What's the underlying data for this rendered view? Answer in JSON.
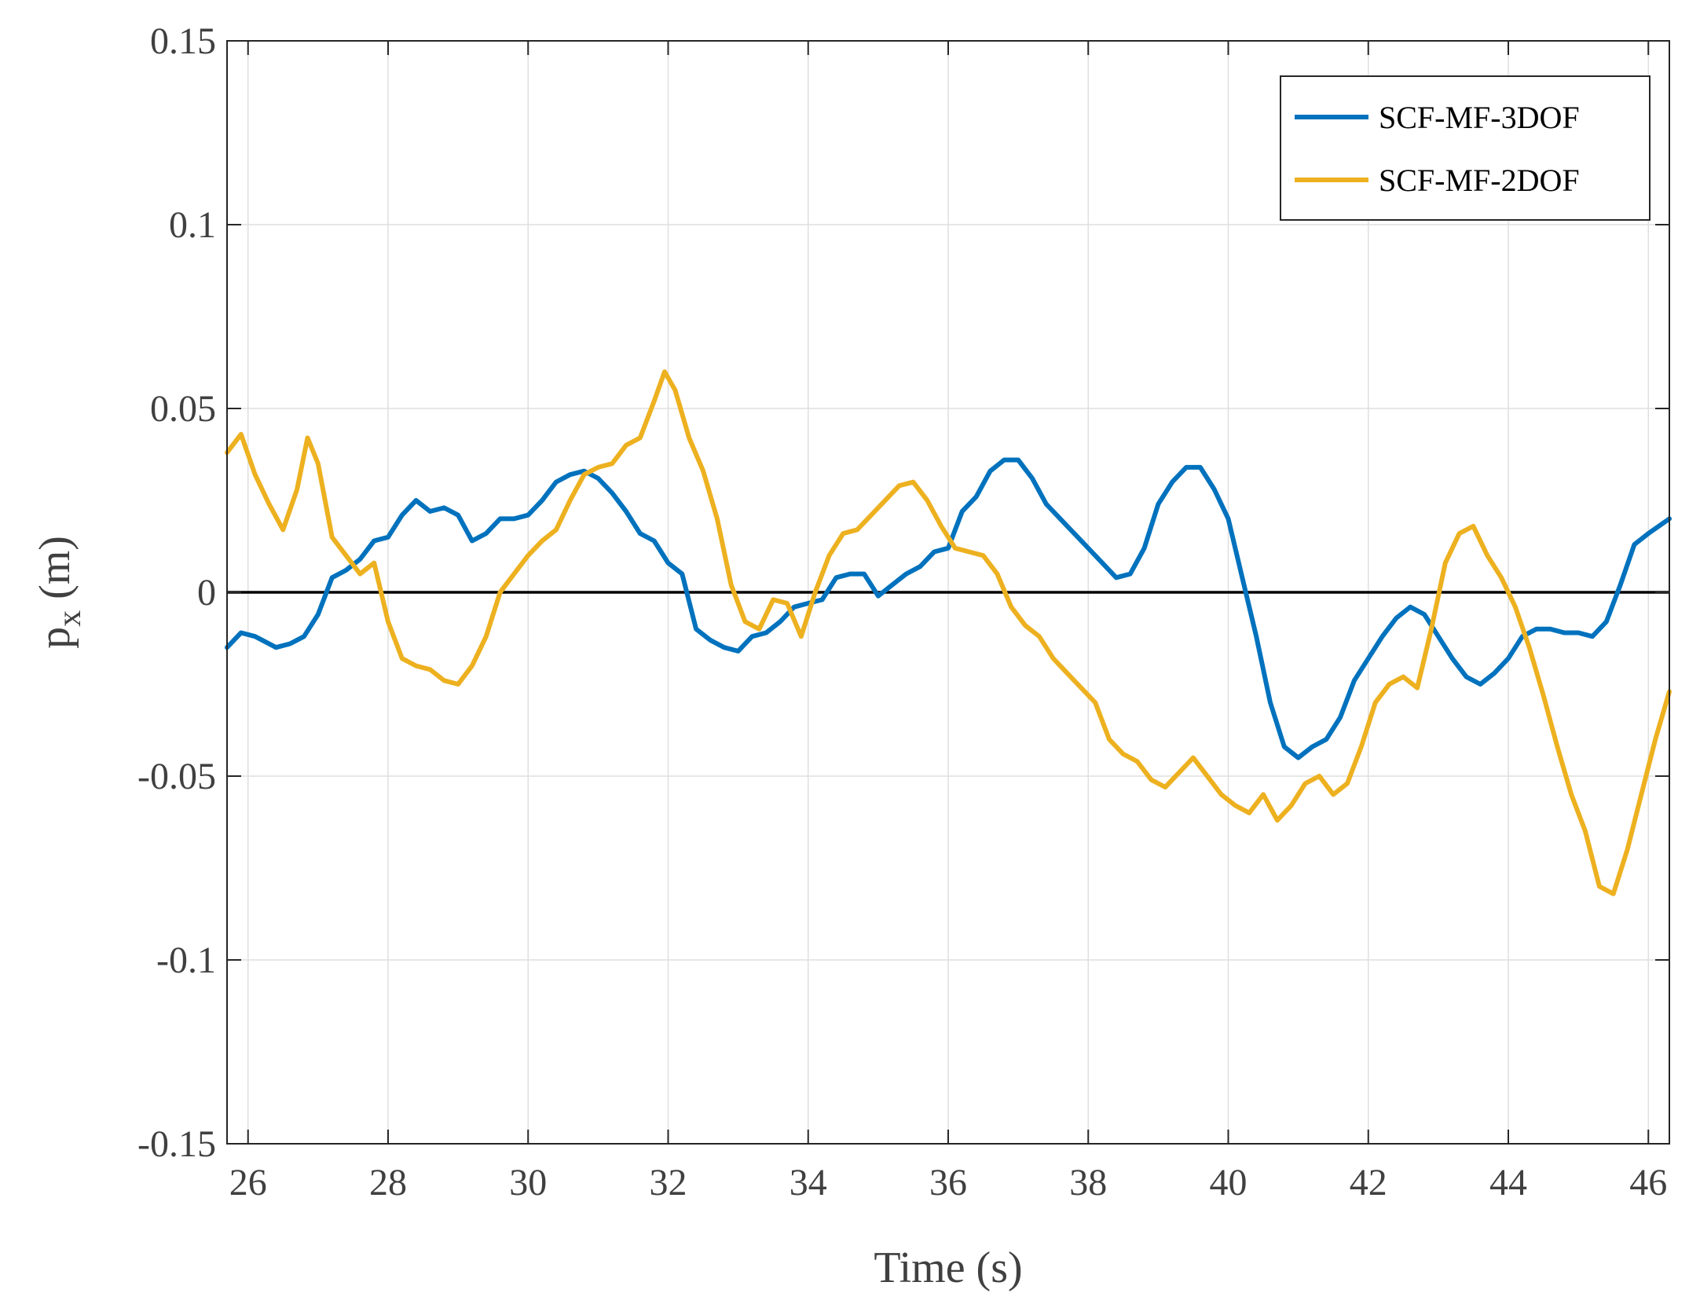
{
  "chart_data": {
    "type": "line",
    "title": "",
    "xlabel": "Time (s)",
    "ylabel_main": "p",
    "ylabel_sub": "x",
    "ylabel_unit": "(m)",
    "xlim": [
      25.7,
      46.3
    ],
    "ylim": [
      -0.15,
      0.15
    ],
    "xticks": [
      26,
      28,
      30,
      32,
      34,
      36,
      38,
      40,
      42,
      44,
      46
    ],
    "xtick_labels": [
      "26",
      "28",
      "30",
      "32",
      "34",
      "36",
      "38",
      "40",
      "42",
      "44",
      "46"
    ],
    "yticks": [
      -0.15,
      -0.1,
      -0.05,
      0,
      0.05,
      0.1,
      0.15
    ],
    "ytick_labels": [
      "-0.15",
      "-0.1",
      "-0.05",
      "0",
      "0.05",
      "0.1",
      "0.15"
    ],
    "grid": true,
    "legend_position": "top-right",
    "reference_line": {
      "y": 0,
      "color": "#000000"
    },
    "series": [
      {
        "name": "SCF-MF-3DOF",
        "color": "#0072BD",
        "x": [
          25.7,
          25.9,
          26.1,
          26.4,
          26.6,
          26.8,
          27.0,
          27.2,
          27.4,
          27.6,
          27.8,
          28.0,
          28.2,
          28.4,
          28.6,
          28.8,
          29.0,
          29.2,
          29.4,
          29.6,
          29.8,
          30.0,
          30.2,
          30.4,
          30.6,
          30.8,
          31.0,
          31.2,
          31.4,
          31.6,
          31.8,
          32.0,
          32.2,
          32.4,
          32.6,
          32.8,
          33.0,
          33.2,
          33.4,
          33.6,
          33.8,
          34.0,
          34.2,
          34.4,
          34.6,
          34.8,
          35.0,
          35.2,
          35.4,
          35.6,
          35.8,
          36.0,
          36.2,
          36.4,
          36.6,
          36.8,
          37.0,
          37.2,
          37.4,
          37.6,
          37.8,
          38.0,
          38.2,
          38.4,
          38.6,
          38.8,
          39.0,
          39.2,
          39.4,
          39.6,
          39.8,
          40.0,
          40.2,
          40.4,
          40.6,
          40.8,
          41.0,
          41.2,
          41.4,
          41.6,
          41.8,
          42.0,
          42.2,
          42.4,
          42.6,
          42.8,
          43.0,
          43.2,
          43.4,
          43.6,
          43.8,
          44.0,
          44.2,
          44.4,
          44.6,
          44.8,
          45.0,
          45.2,
          45.4,
          45.6,
          45.8,
          46.0,
          46.3
        ],
        "values": [
          -0.015,
          -0.011,
          -0.012,
          -0.015,
          -0.014,
          -0.012,
          -0.006,
          0.004,
          0.006,
          0.009,
          0.014,
          0.015,
          0.021,
          0.025,
          0.022,
          0.023,
          0.021,
          0.014,
          0.016,
          0.02,
          0.02,
          0.021,
          0.025,
          0.03,
          0.032,
          0.033,
          0.031,
          0.027,
          0.022,
          0.016,
          0.014,
          0.008,
          0.005,
          -0.01,
          -0.013,
          -0.015,
          -0.016,
          -0.012,
          -0.011,
          -0.008,
          -0.004,
          -0.003,
          -0.002,
          0.004,
          0.005,
          0.005,
          -0.001,
          0.002,
          0.005,
          0.007,
          0.011,
          0.012,
          0.022,
          0.026,
          0.033,
          0.036,
          0.036,
          0.031,
          0.024,
          0.02,
          0.016,
          0.012,
          0.008,
          0.004,
          0.005,
          0.012,
          0.024,
          0.03,
          0.034,
          0.034,
          0.028,
          0.02,
          0.004,
          -0.012,
          -0.03,
          -0.042,
          -0.045,
          -0.042,
          -0.04,
          -0.034,
          -0.024,
          -0.018,
          -0.012,
          -0.007,
          -0.004,
          -0.006,
          -0.012,
          -0.018,
          -0.023,
          -0.025,
          -0.022,
          -0.018,
          -0.012,
          -0.01,
          -0.01,
          -0.011,
          -0.011,
          -0.012,
          -0.008,
          0.002,
          0.013,
          0.016,
          0.02
        ]
      },
      {
        "name": "SCF-MF-2DOF",
        "color": "#EDB120",
        "x": [
          25.7,
          25.9,
          26.1,
          26.3,
          26.5,
          26.7,
          26.85,
          27.0,
          27.2,
          27.4,
          27.6,
          27.8,
          28.0,
          28.2,
          28.4,
          28.6,
          28.8,
          29.0,
          29.2,
          29.4,
          29.6,
          29.8,
          30.0,
          30.2,
          30.4,
          30.6,
          30.8,
          31.0,
          31.2,
          31.4,
          31.6,
          31.8,
          31.95,
          32.1,
          32.3,
          32.5,
          32.7,
          32.9,
          33.1,
          33.3,
          33.5,
          33.7,
          33.9,
          34.1,
          34.3,
          34.5,
          34.7,
          34.9,
          35.1,
          35.3,
          35.5,
          35.7,
          35.9,
          36.1,
          36.3,
          36.5,
          36.7,
          36.9,
          37.1,
          37.3,
          37.5,
          37.7,
          37.9,
          38.1,
          38.3,
          38.5,
          38.7,
          38.9,
          39.1,
          39.3,
          39.5,
          39.7,
          39.9,
          40.1,
          40.3,
          40.5,
          40.7,
          40.9,
          41.1,
          41.3,
          41.5,
          41.7,
          41.9,
          42.1,
          42.3,
          42.5,
          42.7,
          42.9,
          43.1,
          43.3,
          43.5,
          43.7,
          43.9,
          44.1,
          44.3,
          44.5,
          44.7,
          44.9,
          45.1,
          45.3,
          45.5,
          45.7,
          45.9,
          46.1,
          46.3
        ],
        "values": [
          0.038,
          0.043,
          0.032,
          0.024,
          0.017,
          0.028,
          0.042,
          0.035,
          0.015,
          0.01,
          0.005,
          0.008,
          -0.008,
          -0.018,
          -0.02,
          -0.021,
          -0.024,
          -0.025,
          -0.02,
          -0.012,
          0.0,
          0.005,
          0.01,
          0.014,
          0.017,
          0.025,
          0.032,
          0.034,
          0.035,
          0.04,
          0.042,
          0.052,
          0.06,
          0.055,
          0.042,
          0.033,
          0.02,
          0.002,
          -0.008,
          -0.01,
          -0.002,
          -0.003,
          -0.012,
          0.0,
          0.01,
          0.016,
          0.017,
          0.021,
          0.025,
          0.029,
          0.03,
          0.025,
          0.018,
          0.012,
          0.011,
          0.01,
          0.005,
          -0.004,
          -0.009,
          -0.012,
          -0.018,
          -0.022,
          -0.026,
          -0.03,
          -0.04,
          -0.044,
          -0.046,
          -0.051,
          -0.053,
          -0.049,
          -0.045,
          -0.05,
          -0.055,
          -0.058,
          -0.06,
          -0.055,
          -0.062,
          -0.058,
          -0.052,
          -0.05,
          -0.055,
          -0.052,
          -0.042,
          -0.03,
          -0.025,
          -0.023,
          -0.026,
          -0.01,
          0.008,
          0.016,
          0.018,
          0.01,
          0.004,
          -0.004,
          -0.015,
          -0.028,
          -0.042,
          -0.055,
          -0.065,
          -0.08,
          -0.082,
          -0.07,
          -0.055,
          -0.04,
          -0.027
        ]
      }
    ]
  }
}
